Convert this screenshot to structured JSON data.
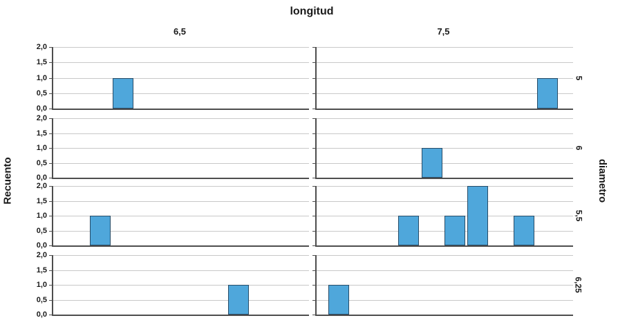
{
  "title": "longitud",
  "y_axis_title": "Recuento",
  "row_axis_title": "diametro",
  "colors": {
    "bar_fill": "#4FA7DB",
    "bar_border": "#274B66",
    "gridline": "#C8C8C8",
    "axis": "#4D4D4D",
    "text": "#1A1A1A",
    "background": "#FFFFFF"
  },
  "chart_data": {
    "type": "bar",
    "title": "longitud",
    "ylabel": "Recuento",
    "panel_row_axis_title": "diametro",
    "panel_cols": [
      "6,5",
      "7,5"
    ],
    "panel_rows": [
      "5",
      "6",
      "5,5",
      "6,25"
    ],
    "ylim": [
      0,
      2
    ],
    "y_ticks": [
      "2,0",
      "1,5",
      "1,0",
      "0,5",
      "0,0"
    ],
    "y_tick_values": [
      2,
      1.5,
      1,
      0.5,
      0
    ],
    "grid": true,
    "legend": "none",
    "x_tick_labels": "none",
    "bar_width_pct": 8.1,
    "panels": [
      {
        "row": "5",
        "col": "6,5",
        "row_idx": 0,
        "col_idx": 0,
        "bars": [
          {
            "left_pct": 23.2,
            "value": 1
          }
        ]
      },
      {
        "row": "5",
        "col": "7,5",
        "row_idx": 0,
        "col_idx": 1,
        "bars": [
          {
            "left_pct": 86.0,
            "value": 1
          }
        ]
      },
      {
        "row": "6",
        "col": "6,5",
        "row_idx": 1,
        "col_idx": 0,
        "bars": []
      },
      {
        "row": "6",
        "col": "7,5",
        "row_idx": 1,
        "col_idx": 1,
        "bars": [
          {
            "left_pct": 41.0,
            "value": 1
          }
        ]
      },
      {
        "row": "5,5",
        "col": "6,5",
        "row_idx": 2,
        "col_idx": 0,
        "bars": [
          {
            "left_pct": 14.3,
            "value": 1
          }
        ]
      },
      {
        "row": "5,5",
        "col": "7,5",
        "row_idx": 2,
        "col_idx": 1,
        "bars": [
          {
            "left_pct": 31.8,
            "value": 1
          },
          {
            "left_pct": 49.9,
            "value": 1
          },
          {
            "left_pct": 58.8,
            "value": 2
          },
          {
            "left_pct": 76.8,
            "value": 1
          }
        ]
      },
      {
        "row": "6,25",
        "col": "6,5",
        "row_idx": 3,
        "col_idx": 0,
        "bars": [
          {
            "left_pct": 68.4,
            "value": 1
          }
        ]
      },
      {
        "row": "6,25",
        "col": "7,5",
        "row_idx": 3,
        "col_idx": 1,
        "bars": [
          {
            "left_pct": 4.6,
            "value": 1
          }
        ]
      }
    ]
  }
}
